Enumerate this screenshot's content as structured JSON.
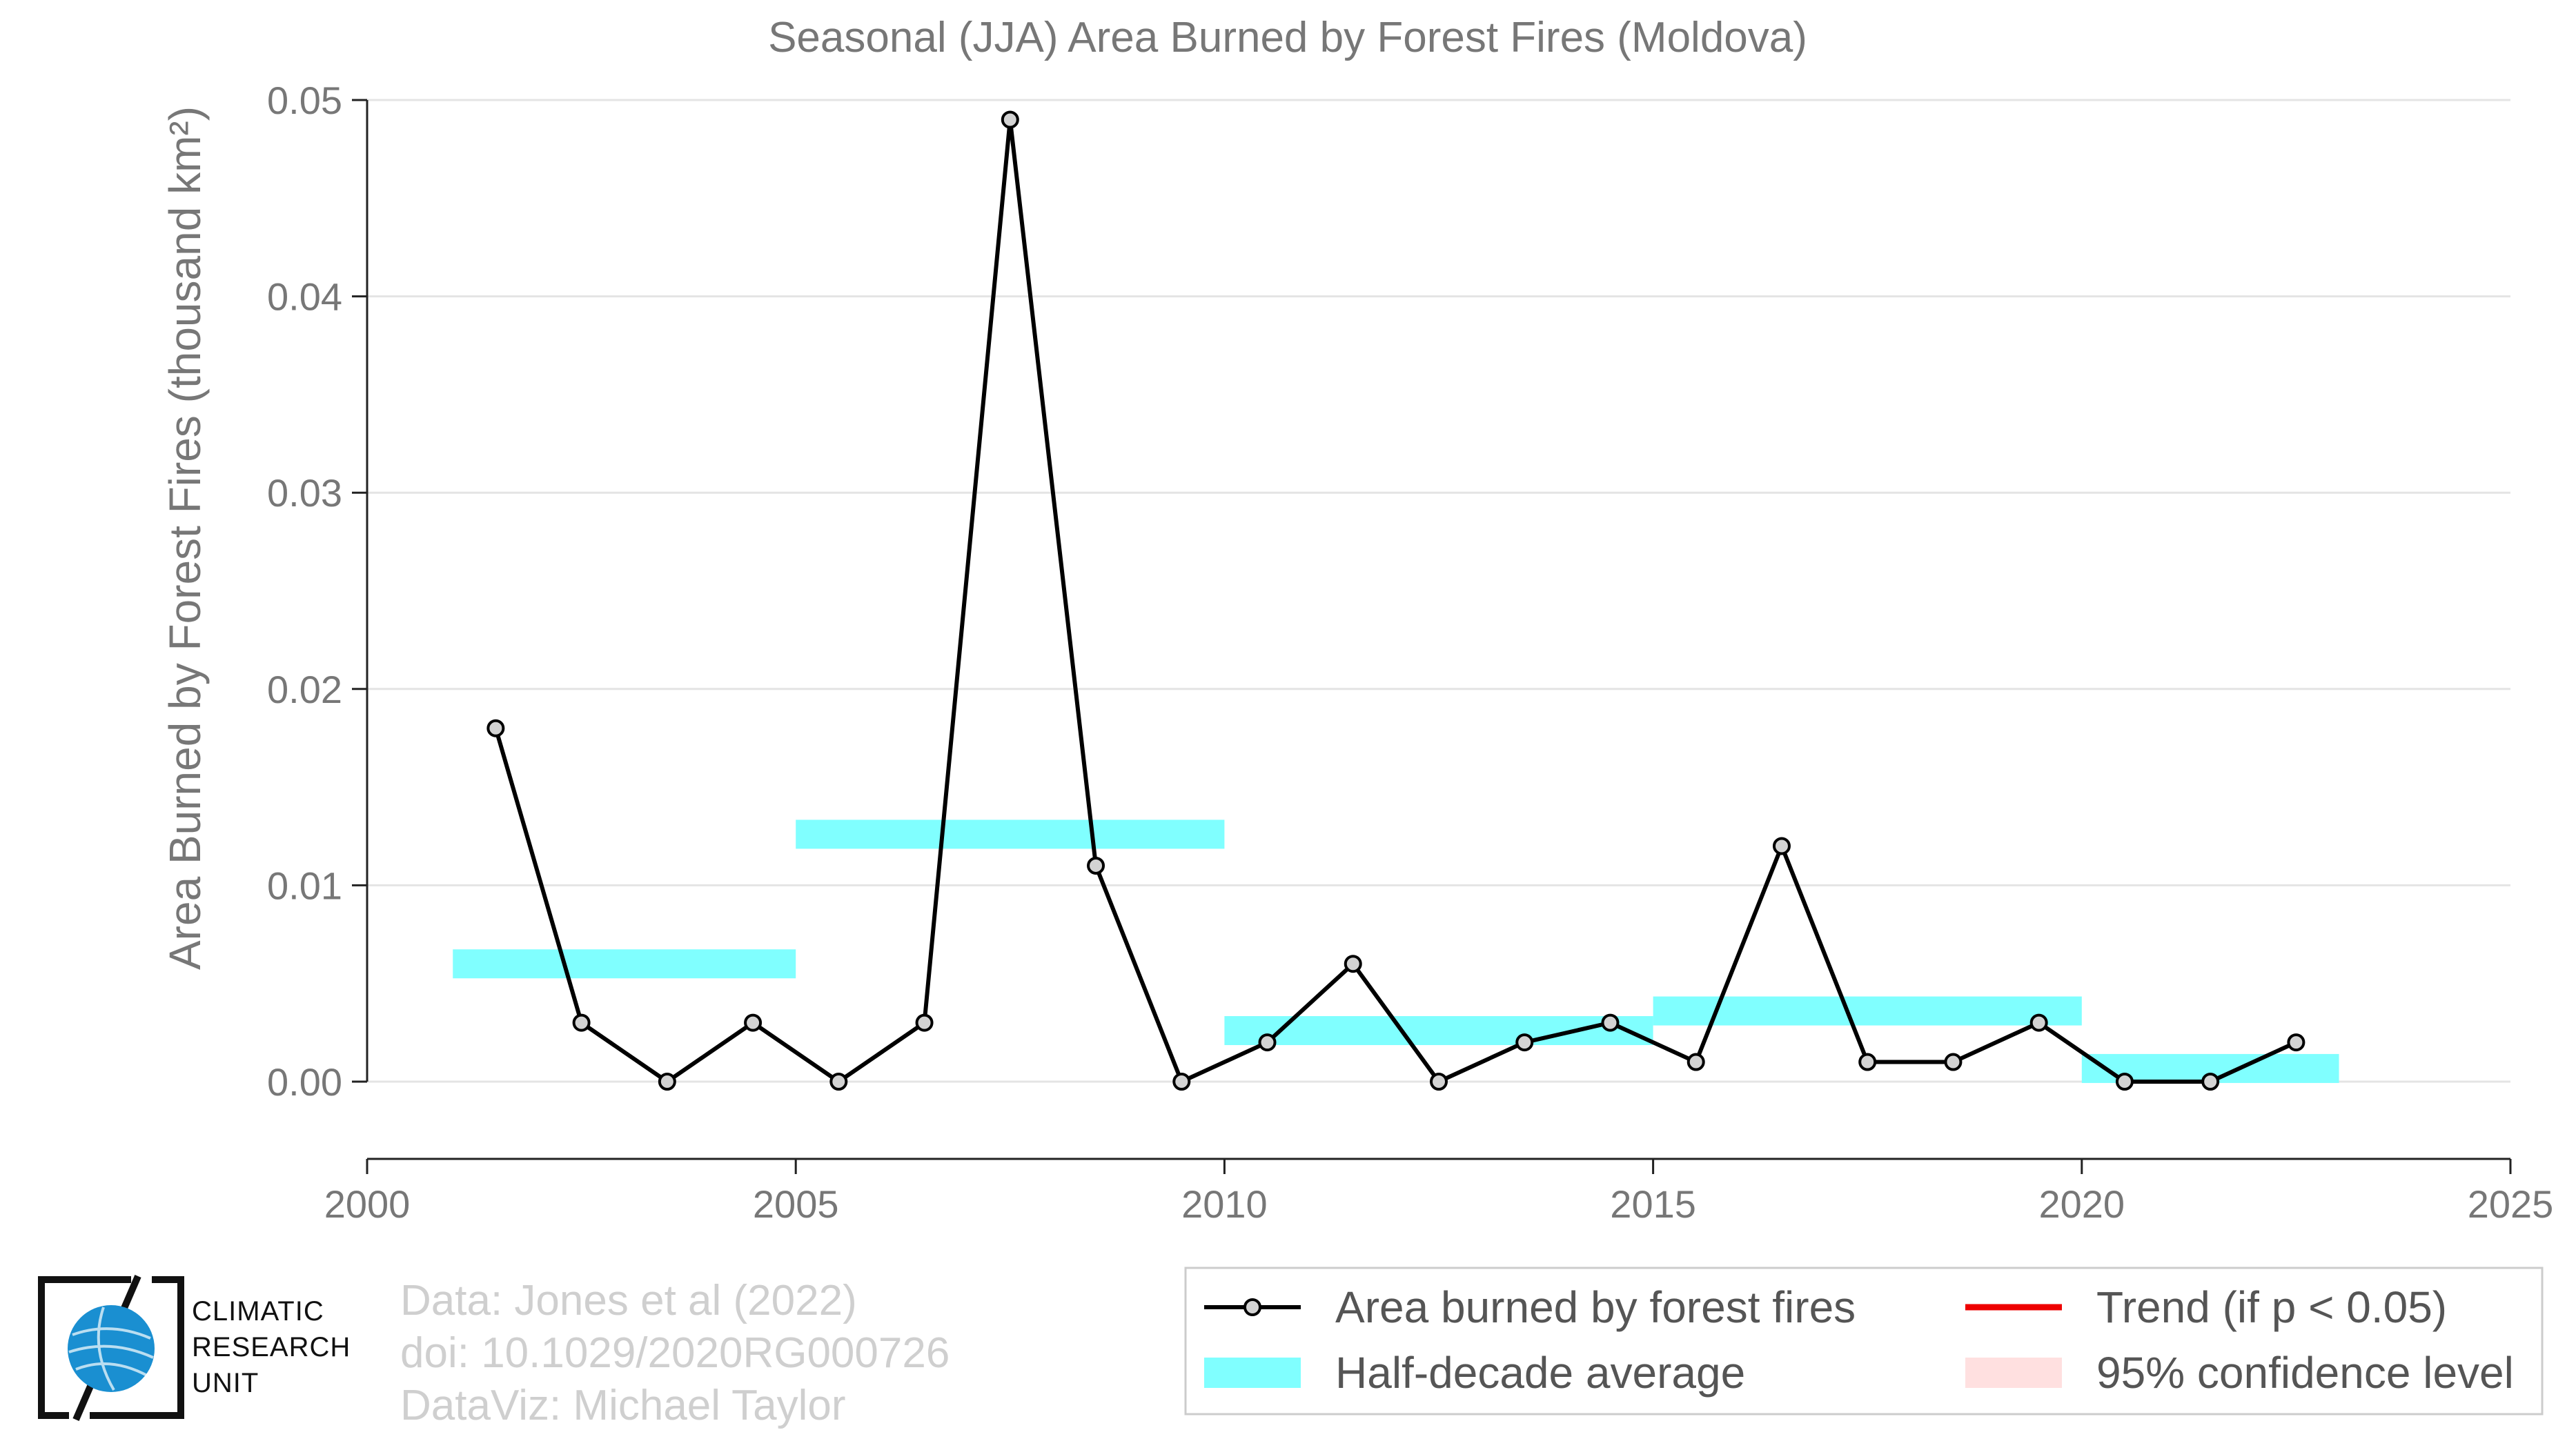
{
  "chart_data": {
    "type": "line",
    "title": "Seasonal (JJA) Area Burned by Forest Fires (Moldova)",
    "ylabel": "Area Burned by Forest Fires (thousand km²)",
    "xlabel": "",
    "xlim": [
      2000,
      2025
    ],
    "ylim": [
      -0.004,
      0.05
    ],
    "xticks": [
      2000,
      2005,
      2010,
      2015,
      2020,
      2025
    ],
    "yticks": [
      0.0,
      0.01,
      0.02,
      0.03,
      0.04,
      0.05
    ],
    "xtick_labels": [
      "2000",
      "2005",
      "2010",
      "2015",
      "2020",
      "2025"
    ],
    "ytick_labels": [
      "0.00",
      "0.01",
      "0.02",
      "0.03",
      "0.04",
      "0.05"
    ],
    "grid": "horizontal",
    "series": [
      {
        "name": "Area burned by forest fires",
        "color": "#000000",
        "marker_fill": "#d3d3d3",
        "x": [
          2001.5,
          2002.5,
          2003.5,
          2004.5,
          2005.5,
          2006.5,
          2007.5,
          2008.5,
          2009.5,
          2010.5,
          2011.5,
          2012.5,
          2013.5,
          2014.5,
          2015.5,
          2016.5,
          2017.5,
          2018.5,
          2019.5,
          2020.5,
          2021.5,
          2022.5
        ],
        "y": [
          0.018,
          0.003,
          0.0,
          0.003,
          0.0,
          0.003,
          0.049,
          0.011,
          0.0,
          0.002,
          0.006,
          0.0,
          0.002,
          0.003,
          0.001,
          0.012,
          0.001,
          0.001,
          0.003,
          0.0,
          0.0,
          0.002
        ]
      }
    ],
    "half_decade_averages": {
      "name": "Half-decade average",
      "color": "#80ffff",
      "segments": [
        {
          "x0": 2001,
          "x1": 2005,
          "y": 0.006
        },
        {
          "x0": 2005,
          "x1": 2010,
          "y": 0.0126
        },
        {
          "x0": 2010,
          "x1": 2015,
          "y": 0.0026
        },
        {
          "x0": 2015,
          "x1": 2020,
          "y": 0.0036
        },
        {
          "x0": 2020,
          "x1": 2023,
          "y": 0.00067
        }
      ]
    },
    "legend": {
      "placement": "bottom-right",
      "entries": [
        {
          "label": "Area burned by forest fires",
          "kind": "line-marker",
          "color": "#000000"
        },
        {
          "label": "Trend (if p < 0.05)",
          "kind": "line",
          "color": "#ee0000"
        },
        {
          "label": "Half-decade average",
          "kind": "patch",
          "color": "#80ffff"
        },
        {
          "label": "95% confidence level",
          "kind": "patch",
          "color": "#ffe0e0"
        }
      ]
    }
  },
  "credits": {
    "line1": "Data: Jones et al (2022)",
    "line2": "doi: 10.1029/2020RG000726",
    "line3": "DataViz: Michael Taylor"
  },
  "logo": {
    "line1": "CLIMATIC",
    "line2": "RESEARCH",
    "line3": "UNIT",
    "color": "#1a8fd1"
  }
}
